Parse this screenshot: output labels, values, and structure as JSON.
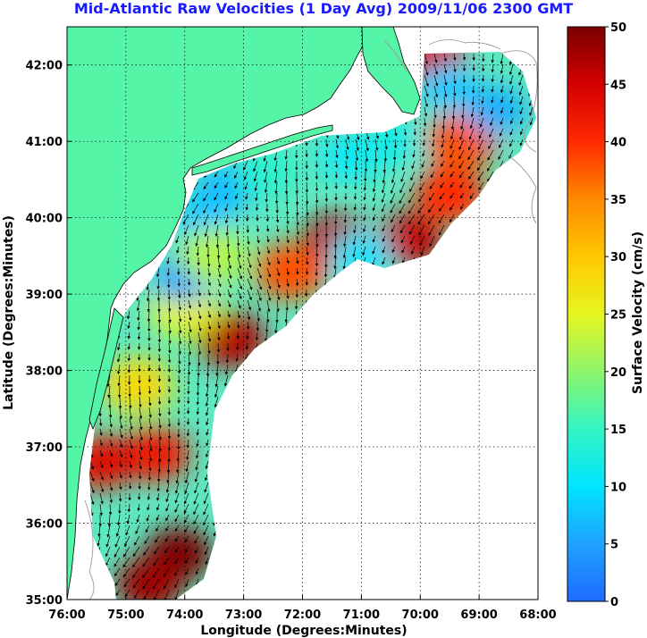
{
  "title": "Mid-Atlantic Raw Velocities (1 Day Avg) 2009/11/06 2300 GMT",
  "axes": {
    "xlabel": "Longitude (Degrees:Minutes)",
    "ylabel": "Latitude (Degrees:Minutes)",
    "x_ticks": [
      "76:00",
      "75:00",
      "74:00",
      "73:00",
      "72:00",
      "71:00",
      "70:00",
      "69:00",
      "68:00"
    ],
    "y_ticks": [
      "35:00",
      "36:00",
      "37:00",
      "38:00",
      "39:00",
      "40:00",
      "41:00",
      "42:00"
    ],
    "lon_range": [
      -76,
      -68
    ],
    "lat_range": [
      35,
      42.5
    ],
    "grid": "dotted"
  },
  "colorbar": {
    "label": "Surface Velocity (cm/s)",
    "ticks": [
      "0",
      "5",
      "10",
      "15",
      "20",
      "25",
      "30",
      "35",
      "40",
      "45",
      "50"
    ],
    "range": [
      0,
      50
    ]
  },
  "colors": {
    "land": "#55f5a8",
    "ocean_no_data": "#ffffff",
    "title": "#1a1aff"
  },
  "hotspots_cm_s": [
    {
      "lon": -74.1,
      "lat": 35.6,
      "speed": 50
    },
    {
      "lon": -74.6,
      "lat": 35.2,
      "speed": 48
    },
    {
      "lon": -74.5,
      "lat": 36.9,
      "speed": 42
    },
    {
      "lon": -75.4,
      "lat": 36.8,
      "speed": 44
    },
    {
      "lon": -73.2,
      "lat": 38.4,
      "speed": 47
    },
    {
      "lon": -71.4,
      "lat": 39.7,
      "speed": 47
    },
    {
      "lon": -72.2,
      "lat": 39.3,
      "speed": 38
    },
    {
      "lon": -70.2,
      "lat": 39.7,
      "speed": 46
    },
    {
      "lon": -69.5,
      "lat": 40.3,
      "speed": 40
    },
    {
      "lon": -69.3,
      "lat": 41.0,
      "speed": 38
    },
    {
      "lon": -69.8,
      "lat": 42.1,
      "speed": 45
    },
    {
      "lon": -74.0,
      "lat": 38.8,
      "speed": 25
    },
    {
      "lon": -74.8,
      "lat": 37.8,
      "speed": 28
    },
    {
      "lon": -73.7,
      "lat": 40.0,
      "speed": 8
    },
    {
      "lon": -73.3,
      "lat": 40.4,
      "speed": 7
    },
    {
      "lon": -74.0,
      "lat": 39.2,
      "speed": 5
    },
    {
      "lon": -72.6,
      "lat": 40.6,
      "speed": 14
    },
    {
      "lon": -71.2,
      "lat": 40.8,
      "speed": 11
    },
    {
      "lon": -70.5,
      "lat": 41.0,
      "speed": 12
    },
    {
      "lon": -69.5,
      "lat": 41.7,
      "speed": 8
    },
    {
      "lon": -68.7,
      "lat": 41.4,
      "speed": 6
    },
    {
      "lon": -71.0,
      "lat": 39.5,
      "speed": 10
    },
    {
      "lon": -73.5,
      "lat": 39.5,
      "speed": 22
    }
  ]
}
